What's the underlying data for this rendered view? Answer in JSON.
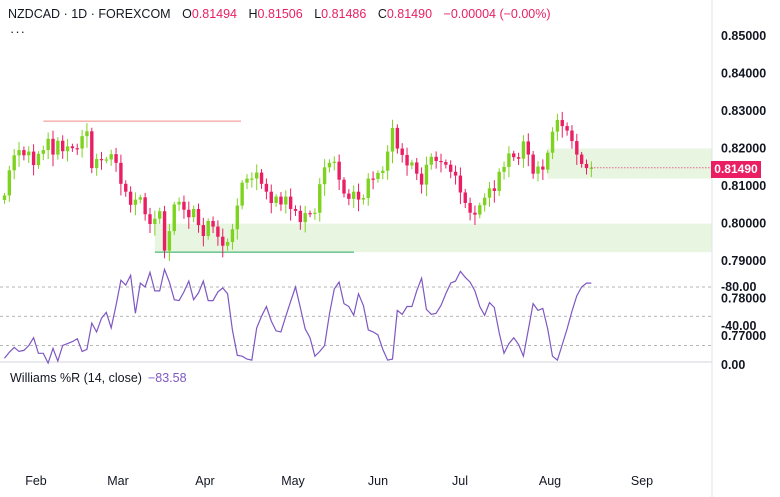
{
  "header": {
    "symbol": "NZDCAD",
    "sep1": "·",
    "interval": "1D",
    "sep2": "·",
    "exchange": "FOREXCOM",
    "open_label": "O",
    "open": "0.81494",
    "high_label": "H",
    "high": "0.81506",
    "low_label": "L",
    "low": "0.81486",
    "close_label": "C",
    "close": "0.81490",
    "change": "−0.00004 (−0.00%)",
    "more": "···"
  },
  "price_tag": "0.81490",
  "indicator": {
    "label": "Williams %R (14, close)",
    "value": "−83.58"
  },
  "colors": {
    "up": "#7ed321",
    "down": "#e91e63",
    "wr_line": "#7e57c2",
    "wr_band": "#ede7f6",
    "zone": "#e8f5e1",
    "resistance": "#f28b82",
    "support": "#26a65b",
    "text": "#131722",
    "value": "#e91e63"
  },
  "chart_data": {
    "type": "candlestick",
    "x_tick_labels": [
      "Feb",
      "Mar",
      "Apr",
      "May",
      "Jun",
      "Jul",
      "Aug",
      "Sep"
    ],
    "y_tick_labels": [
      "0.85000",
      "0.84000",
      "0.83000",
      "0.82000",
      "0.81000",
      "0.80000",
      "0.79000",
      "0.78000",
      "0.77000"
    ],
    "ylim": [
      0.7655,
      0.8538
    ],
    "last_close": 0.8149,
    "closes": [
      0.8075,
      0.8142,
      0.8182,
      0.8196,
      0.8182,
      0.8192,
      0.8156,
      0.8186,
      0.8196,
      0.8226,
      0.8184,
      0.8221,
      0.8193,
      0.8206,
      0.8201,
      0.82,
      0.8233,
      0.8246,
      0.8148,
      0.8172,
      0.8171,
      0.8171,
      0.8185,
      0.8162,
      0.8106,
      0.8085,
      0.805,
      0.8064,
      0.807,
      0.8025,
      0.7999,
      0.8013,
      0.8033,
      0.7928,
      0.798,
      0.8051,
      0.8058,
      0.8037,
      0.8017,
      0.8039,
      0.7996,
      0.7967,
      0.8007,
      0.7992,
      0.7965,
      0.7941,
      0.7951,
      0.7985,
      0.8048,
      0.8109,
      0.812,
      0.812,
      0.8136,
      0.8106,
      0.8085,
      0.8055,
      0.8072,
      0.8051,
      0.8072,
      0.8039,
      0.8034,
      0.8004,
      0.8028,
      0.8027,
      0.8029,
      0.8105,
      0.815,
      0.8162,
      0.8165,
      0.8117,
      0.808,
      0.8066,
      0.8085,
      0.8064,
      0.8068,
      0.812,
      0.8119,
      0.8135,
      0.8141,
      0.8192,
      0.8255,
      0.82,
      0.8183,
      0.8155,
      0.8163,
      0.8133,
      0.8104,
      0.8157,
      0.8178,
      0.8167,
      0.8164,
      0.8157,
      0.8138,
      0.8128,
      0.8083,
      0.8055,
      0.8029,
      0.8024,
      0.8049,
      0.8069,
      0.8094,
      0.8087,
      0.8138,
      0.8151,
      0.8187,
      0.8177,
      0.8173,
      0.8219,
      0.8184,
      0.8133,
      0.8152,
      0.8144,
      0.8189,
      0.8245,
      0.8276,
      0.826,
      0.8248,
      0.822,
      0.8184,
      0.8159,
      0.8148,
      0.8149
    ],
    "resistance_line": {
      "value": 0.8273
    },
    "support_line": {
      "value": 0.7924
    },
    "demand_zones": [
      {
        "low": 0.7924,
        "high": 0.8
      },
      {
        "low": 0.812,
        "high": 0.82
      }
    ],
    "williams_r": {
      "name": "Williams %R (14, close)",
      "last": -83.58,
      "y_tick_labels": [
        "0.00",
        "-40.00",
        "-80.00"
      ],
      "ylim": [
        -100,
        0
      ],
      "band": [
        -20,
        -80
      ],
      "values": [
        -7,
        -13,
        -18,
        -14,
        -15,
        -20,
        -28,
        -12,
        -12,
        -2,
        -17,
        -4,
        -20,
        -22,
        -24,
        -27,
        -14,
        -16,
        -43,
        -34,
        -48,
        -54,
        -38,
        -61,
        -87,
        -82,
        -92,
        -53,
        -84,
        -80,
        -95,
        -76,
        -76,
        -98,
        -85,
        -67,
        -66,
        -75,
        -86,
        -67,
        -74,
        -86,
        -66,
        -66,
        -75,
        -79,
        -73,
        -36,
        -10,
        -9,
        -6,
        -5,
        -38,
        -50,
        -60,
        -45,
        -35,
        -34,
        -50,
        -65,
        -80,
        -59,
        -37,
        -28,
        -9,
        -14,
        -20,
        -52,
        -78,
        -85,
        -63,
        -60,
        -51,
        -73,
        -61,
        -36,
        -34,
        -31,
        -16,
        -5,
        -6,
        -56,
        -52,
        -60,
        -60,
        -76,
        -89,
        -57,
        -52,
        -53,
        -61,
        -73,
        -84,
        -86,
        -96,
        -90,
        -85,
        -76,
        -60,
        -51,
        -64,
        -59,
        -33,
        -12,
        -22,
        -28,
        -21,
        -9,
        -36,
        -63,
        -56,
        -58,
        -37,
        -9,
        -5,
        -21,
        -37,
        -55,
        -71,
        -80,
        -84,
        -84
      ]
    }
  }
}
